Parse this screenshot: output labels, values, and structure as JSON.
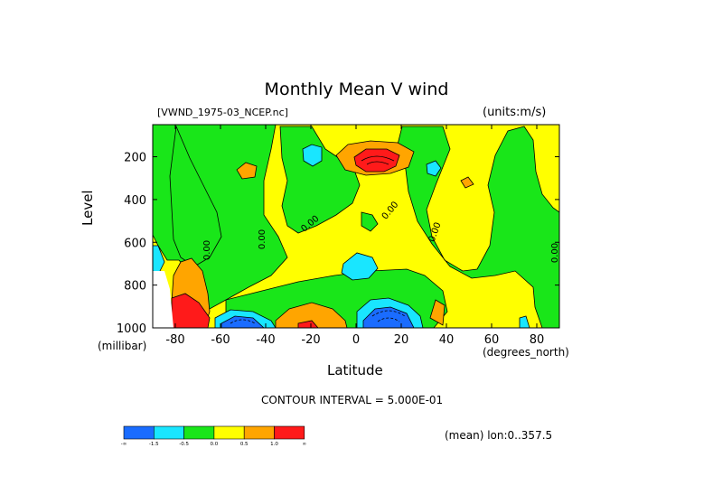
{
  "chart_data": {
    "type": "heatmap",
    "title": "Monthly Mean V wind",
    "file_label": "[VWND_1975-03_NCEP.nc]",
    "units_label": "(units:m/s)",
    "xlabel": "Latitude",
    "x_unit": "(degrees_north)",
    "ylabel": "Level",
    "y_unit": "(millibar)",
    "x_ticks": [
      "-80",
      "-60",
      "-40",
      "-20",
      "0",
      "20",
      "40",
      "60",
      "80"
    ],
    "y_ticks": [
      "200",
      "400",
      "600",
      "800",
      "1000"
    ],
    "xlim": [
      -90,
      90
    ],
    "ylim": [
      1000,
      50
    ],
    "contour_interval": "CONTOUR INTERVAL = 5.000E-01",
    "mean_note": "(mean) lon:0..357.5",
    "contour_labels": [
      "0.00",
      "0.00",
      "0.00",
      "0.00",
      "0.00",
      "0.00"
    ],
    "colorbar": {
      "colors": [
        "#1a6cff",
        "#19e6ff",
        "#19e619",
        "#ffff00",
        "#ffa500",
        "#ff1a1a"
      ],
      "labels": [
        "-∞",
        "-1.5",
        "-0.5",
        "0.0",
        "0.5",
        "1.0",
        "∞"
      ]
    }
  }
}
